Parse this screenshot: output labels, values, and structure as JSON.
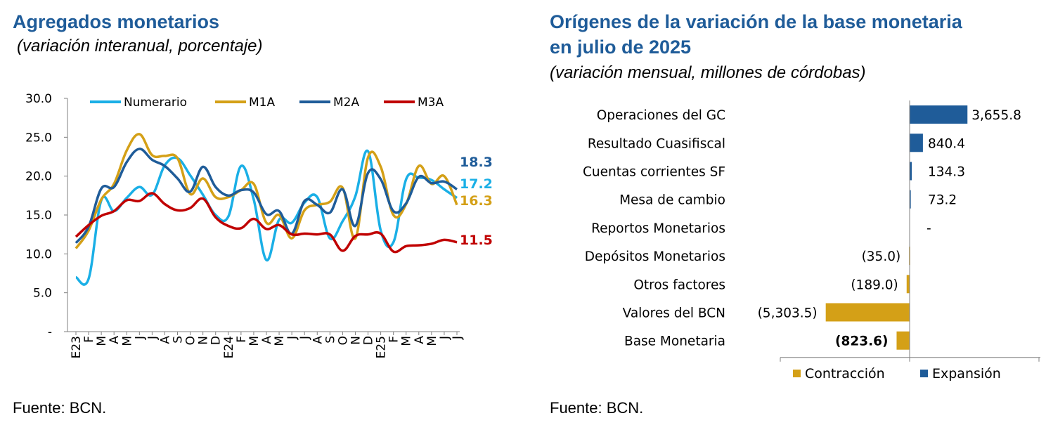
{
  "left": {
    "title": "Agregados monetarios",
    "subtitle": "(variación interanual, porcentaje)",
    "source": "Fuente: BCN.",
    "chart_data": {
      "type": "line",
      "title": "Agregados monetarios",
      "subtitle": "(variación interanual, porcentaje)",
      "xlabel": "",
      "ylabel": "",
      "ylim": [
        0,
        30
      ],
      "yticks": [
        0,
        5,
        10,
        15,
        20,
        25,
        30
      ],
      "yticklabels": [
        "-",
        "5.0",
        "10.0",
        "15.0",
        "20.0",
        "25.0",
        "30.0"
      ],
      "categories": [
        "E23",
        "F",
        "M",
        "A",
        "M",
        "J",
        "J",
        "A",
        "S",
        "O",
        "N",
        "D",
        "E24",
        "F",
        "M",
        "A",
        "M",
        "J",
        "J",
        "A",
        "S",
        "O",
        "N",
        "D",
        "E25",
        "F",
        "M",
        "A",
        "M",
        "J",
        "J"
      ],
      "legend_position": "top",
      "grid": false,
      "series": [
        {
          "name": "Numerario",
          "color": "#1AAFE6",
          "values": [
            7.0,
            6.8,
            16.9,
            15.5,
            17.2,
            18.6,
            17.6,
            21.4,
            22.3,
            20.1,
            17.6,
            15.0,
            14.8,
            21.3,
            17.0,
            9.2,
            14.4,
            14.0,
            16.6,
            17.3,
            12.0,
            14.2,
            17.4,
            23.2,
            13.0,
            11.5,
            19.6,
            19.8,
            19.5,
            18.3,
            17.2
          ],
          "end_label": "17.2"
        },
        {
          "name": "M1A",
          "color": "#D4A017",
          "values": [
            10.7,
            13.0,
            17.0,
            19.0,
            23.3,
            25.4,
            22.7,
            22.6,
            22.3,
            17.7,
            19.7,
            17.3,
            17.3,
            18.2,
            19.0,
            14.0,
            15.0,
            12.0,
            15.6,
            16.3,
            16.7,
            18.5,
            12.0,
            22.4,
            21.2,
            15.0,
            16.4,
            21.3,
            19.0,
            20.0,
            16.3
          ],
          "end_label": "16.3"
        },
        {
          "name": "M2A",
          "color": "#1F5C99",
          "values": [
            11.4,
            13.5,
            18.4,
            18.6,
            21.8,
            23.5,
            22.1,
            21.3,
            19.7,
            18.0,
            21.2,
            18.6,
            17.5,
            18.2,
            17.9,
            15.1,
            15.5,
            12.6,
            16.8,
            16.3,
            15.3,
            18.3,
            13.6,
            20.4,
            19.6,
            15.5,
            16.5,
            19.9,
            19.1,
            19.3,
            18.3
          ],
          "end_label": "18.3"
        },
        {
          "name": "M3A",
          "color": "#C00000",
          "values": [
            12.2,
            13.7,
            14.9,
            15.5,
            16.9,
            16.8,
            17.8,
            16.4,
            15.6,
            15.9,
            17.1,
            14.7,
            13.6,
            13.3,
            14.5,
            13.2,
            13.7,
            12.5,
            12.6,
            12.5,
            12.5,
            10.4,
            12.3,
            12.5,
            12.6,
            10.3,
            11.0,
            11.1,
            11.3,
            11.8,
            11.5
          ],
          "end_label": "11.5"
        }
      ]
    }
  },
  "right": {
    "title_line1": "Orígenes de la variación de la base monetaria",
    "title_line2": "en julio de 2025",
    "subtitle": "(variación mensual, millones de córdobas)",
    "source": "Fuente: BCN.",
    "chart_data": {
      "type": "bar",
      "orientation": "horizontal",
      "title": "Orígenes de la variación de la base monetaria en julio de 2025",
      "subtitle": "(variación mensual, millones de córdobas)",
      "categories": [
        "Operaciones del GC",
        "Resultado Cuasifiscal",
        "Cuentas corrientes SF",
        "Mesa de cambio",
        "Reportos Monetarios",
        "Depósitos Monetarios",
        "Otros factores",
        "Valores del BCN",
        "Base Monetaria"
      ],
      "values": [
        3655.8,
        840.4,
        134.3,
        73.2,
        0,
        -35.0,
        -189.0,
        -5303.5,
        -823.6
      ],
      "value_labels": [
        "3,655.8",
        "840.4",
        "134.3",
        "73.2",
        "-",
        "(35.0)",
        "(189.0)",
        "(5,303.5)",
        "(823.6)"
      ],
      "bold_label_index": 8,
      "series": [
        {
          "name": "Contracción",
          "color": "#D4A017"
        },
        {
          "name": "Expansión",
          "color": "#1F5C99"
        }
      ],
      "legend_position": "bottom",
      "grid": false
    }
  }
}
